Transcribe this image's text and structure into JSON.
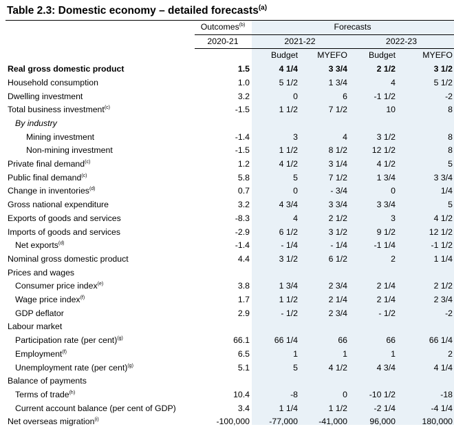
{
  "title": "Table 2.3: Domestic economy – detailed forecasts",
  "title_note": "(a)",
  "header": {
    "outcomes": "Outcomes",
    "outcomes_note": "(b)",
    "forecasts": "Forecasts",
    "year_outcome": "2020-21",
    "year_1": "2021-22",
    "year_2": "2022-23",
    "budget": "Budget",
    "myefo": "MYEFO"
  },
  "rows": [
    {
      "label": "Real gross domestic product",
      "note": "",
      "bold": true,
      "indent": 0,
      "italic": false,
      "values": [
        "1.5",
        "4 1/4",
        "3 3/4",
        "2 1/2",
        "3 1/2"
      ]
    },
    {
      "label": "Household consumption",
      "note": "",
      "bold": false,
      "indent": 0,
      "italic": false,
      "values": [
        "1.0",
        "5 1/2",
        "1 3/4",
        "4",
        "5 1/2"
      ]
    },
    {
      "label": "Dwelling investment",
      "note": "",
      "bold": false,
      "indent": 0,
      "italic": false,
      "values": [
        "3.2",
        "0",
        "6",
        "-1 1/2",
        "-2"
      ]
    },
    {
      "label": "Total business investment",
      "note": "(c)",
      "bold": false,
      "indent": 0,
      "italic": false,
      "values": [
        "-1.5",
        "1 1/2",
        "7 1/2",
        "10",
        "8"
      ]
    },
    {
      "label": "By industry",
      "note": "",
      "bold": false,
      "indent": 1,
      "italic": true,
      "values": [
        "",
        "",
        "",
        "",
        ""
      ]
    },
    {
      "label": "Mining investment",
      "note": "",
      "bold": false,
      "indent": 2,
      "italic": false,
      "values": [
        "-1.4",
        "3",
        "4",
        "3 1/2",
        "8"
      ]
    },
    {
      "label": "Non-mining investment",
      "note": "",
      "bold": false,
      "indent": 2,
      "italic": false,
      "values": [
        "-1.5",
        "1 1/2",
        "8 1/2",
        "12 1/2",
        "8"
      ]
    },
    {
      "label": "Private final demand",
      "note": "(c)",
      "bold": false,
      "indent": 0,
      "italic": false,
      "values": [
        "1.2",
        "4 1/2",
        "3 1/4",
        "4 1/2",
        "5"
      ]
    },
    {
      "label": "Public final demand",
      "note": "(c)",
      "bold": false,
      "indent": 0,
      "italic": false,
      "values": [
        "5.8",
        "5",
        "7 1/2",
        "1 3/4",
        "3 3/4"
      ]
    },
    {
      "label": "Change in inventories",
      "note": "(d)",
      "bold": false,
      "indent": 0,
      "italic": false,
      "values": [
        "0.7",
        "0",
        "- 3/4",
        "0",
        "1/4"
      ]
    },
    {
      "label": "Gross national expenditure",
      "note": "",
      "bold": false,
      "indent": 0,
      "italic": false,
      "values": [
        "3.2",
        "4 3/4",
        "3 3/4",
        "3 3/4",
        "5"
      ]
    },
    {
      "label": "Exports of goods and services",
      "note": "",
      "bold": false,
      "indent": 0,
      "italic": false,
      "values": [
        "-8.3",
        "4",
        "2 1/2",
        "3",
        "4 1/2"
      ]
    },
    {
      "label": "Imports of goods and services",
      "note": "",
      "bold": false,
      "indent": 0,
      "italic": false,
      "values": [
        "-2.9",
        "6 1/2",
        "3 1/2",
        "9 1/2",
        "12 1/2"
      ]
    },
    {
      "label": "Net exports",
      "note": "(d)",
      "bold": false,
      "indent": 1,
      "italic": false,
      "values": [
        "-1.4",
        "- 1/4",
        "- 1/4",
        "-1 1/4",
        "-1 1/2"
      ]
    },
    {
      "label": "Nominal gross domestic product",
      "note": "",
      "bold": false,
      "indent": 0,
      "italic": false,
      "values": [
        "4.4",
        "3 1/2",
        "6 1/2",
        "2",
        "1 1/4"
      ]
    },
    {
      "label": "Prices and wages",
      "note": "",
      "bold": false,
      "indent": 0,
      "italic": false,
      "values": [
        "",
        "",
        "",
        "",
        ""
      ]
    },
    {
      "label": "Consumer price index",
      "note": "(e)",
      "bold": false,
      "indent": 1,
      "italic": false,
      "values": [
        "3.8",
        "1 3/4",
        "2 3/4",
        "2 1/4",
        "2 1/2"
      ]
    },
    {
      "label": "Wage price index",
      "note": "(f)",
      "bold": false,
      "indent": 1,
      "italic": false,
      "values": [
        "1.7",
        "1 1/2",
        "2 1/4",
        "2 1/4",
        "2 3/4"
      ]
    },
    {
      "label": "GDP deflator",
      "note": "",
      "bold": false,
      "indent": 1,
      "italic": false,
      "values": [
        "2.9",
        "- 1/2",
        "2 3/4",
        "- 1/2",
        "-2"
      ]
    },
    {
      "label": "Labour market",
      "note": "",
      "bold": false,
      "indent": 0,
      "italic": false,
      "values": [
        "",
        "",
        "",
        "",
        ""
      ]
    },
    {
      "label": "Participation rate (per cent)",
      "note": "(g)",
      "bold": false,
      "indent": 1,
      "italic": false,
      "values": [
        "66.1",
        "66 1/4",
        "66",
        "66",
        "66 1/4"
      ]
    },
    {
      "label": "Employment",
      "note": "(f)",
      "bold": false,
      "indent": 1,
      "italic": false,
      "values": [
        "6.5",
        "1",
        "1",
        "1",
        "2"
      ]
    },
    {
      "label": "Unemployment rate (per cent)",
      "note": "(g)",
      "bold": false,
      "indent": 1,
      "italic": false,
      "values": [
        "5.1",
        "5",
        "4 1/2",
        "4 3/4",
        "4 1/4"
      ]
    },
    {
      "label": "Balance of payments",
      "note": "",
      "bold": false,
      "indent": 0,
      "italic": false,
      "values": [
        "",
        "",
        "",
        "",
        ""
      ]
    },
    {
      "label": "Terms of trade",
      "note": "(h)",
      "bold": false,
      "indent": 1,
      "italic": false,
      "values": [
        "10.4",
        "-8",
        "0",
        "-10 1/2",
        "-18"
      ]
    },
    {
      "label": "Current account balance (per cent of GDP)",
      "note": "",
      "bold": false,
      "indent": 1,
      "italic": false,
      "values": [
        "3.4",
        "1 1/4",
        "1 1/2",
        "-2 1/4",
        "-4 1/4"
      ]
    },
    {
      "label": "Net overseas migration",
      "note": "(i)",
      "bold": false,
      "indent": 0,
      "italic": false,
      "values": [
        "-100,000",
        "-77,000",
        "-41,000",
        "96,000",
        "180,000"
      ]
    }
  ]
}
